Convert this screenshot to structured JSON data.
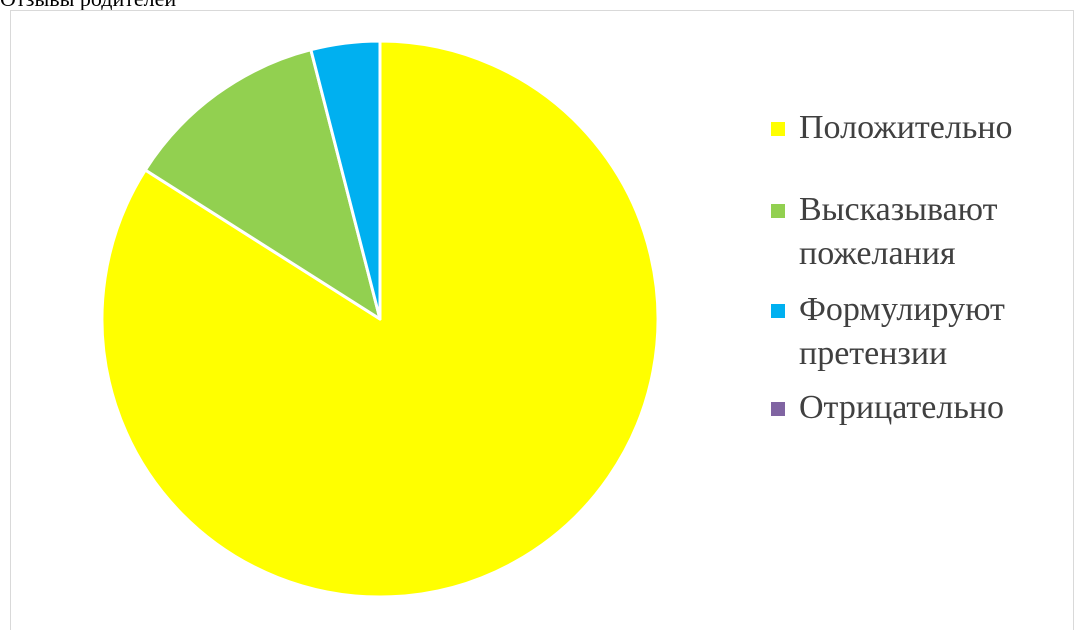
{
  "page": {
    "top_text": "Отзывы родителей"
  },
  "colors": {
    "positive": "#ffff00",
    "wishes": "#92d050",
    "claims": "#00b0f0",
    "negative": "#8064a2",
    "slice_border": "#ffffff",
    "legend_text": "#404040"
  },
  "chart_data": {
    "type": "pie",
    "title": "",
    "categories": [
      "Положительно",
      "Высказывают пожелания",
      "Формулируют претензии",
      "Отрицательно"
    ],
    "values": [
      84,
      12,
      4,
      0
    ],
    "legend_position": "right",
    "start_angle": "top",
    "direction": "clockwise"
  },
  "legend": {
    "items": [
      {
        "lines": [
          "Положительно"
        ],
        "color": "#ffff00"
      },
      {
        "lines": [
          "Высказывают",
          "пожелания"
        ],
        "color": "#92d050"
      },
      {
        "lines": [
          "Формулируют",
          "претензии"
        ],
        "color": "#00b0f0"
      },
      {
        "lines": [
          "Отрицательно"
        ],
        "color": "#8064a2"
      }
    ]
  }
}
